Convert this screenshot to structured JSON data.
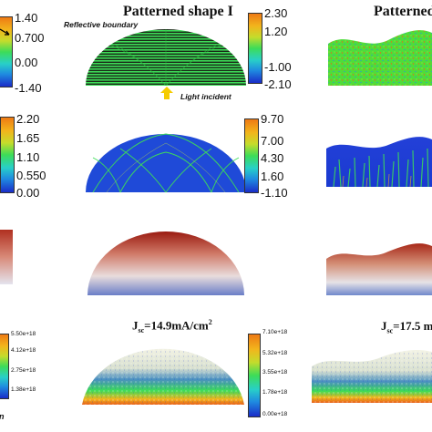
{
  "headings": {
    "shape1": "Patterned shape I",
    "shape2": "Patterned s"
  },
  "annotations": {
    "reflective_boundary": "Reflective boundary",
    "light_incident": "Light incident",
    "bottom_left_fragment": "n"
  },
  "colorbars": {
    "row1_left": [
      "1.40",
      "0.700",
      "0.00",
      "-1.40"
    ],
    "row1_right": [
      "2.30",
      "1.20",
      "-1.00",
      "-2.10"
    ],
    "row2_left": [
      "2.20",
      "1.65",
      "1.10",
      "0.550",
      "0.00"
    ],
    "row2_right": [
      "9.70",
      "7.00",
      "4.30",
      "1.60",
      "-1.10"
    ],
    "row4_left": [
      "5.50e+18",
      "4.12e+18",
      "2.75e+18",
      "1.38e+18"
    ],
    "row4_right": [
      "7.10e+18",
      "5.32e+18",
      "3.55e+18",
      "1.78e+18",
      "0.00e+18"
    ]
  },
  "jsc": {
    "shape1": {
      "prefix": "J",
      "sub": "sc",
      "value": "=14.9mA/cm",
      "sup": "2"
    },
    "shape2": {
      "prefix": "J",
      "sub": "sc",
      "value": "=17.5 m",
      "sup": ""
    }
  },
  "colors": {
    "hot": "#ee7a14",
    "cold": "#1a2cc8",
    "green": "#3ddc58",
    "arrow": "#f5cc00"
  }
}
